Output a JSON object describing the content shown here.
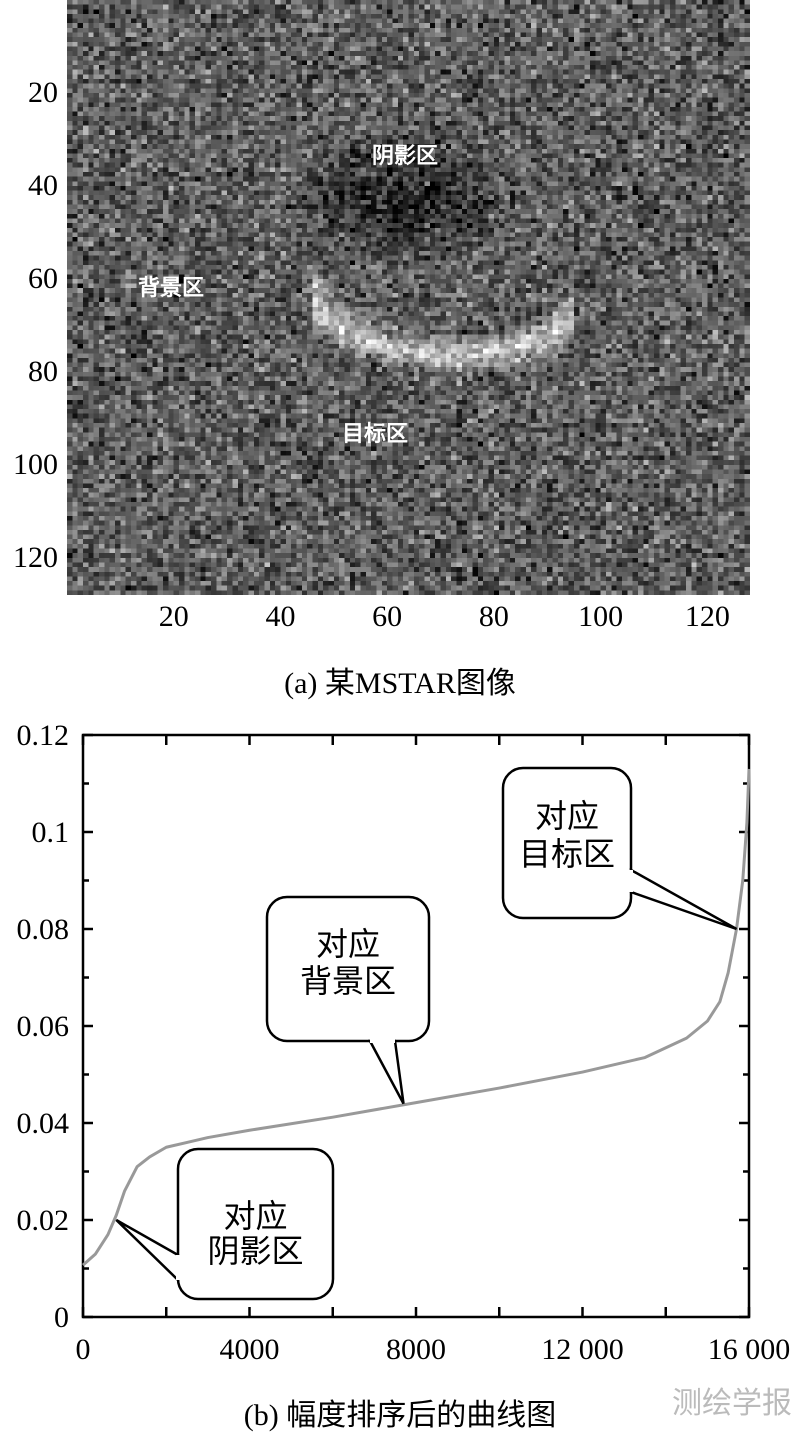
{
  "chart_data": [
    {
      "type": "heatmap",
      "title": "(a) 某MSTAR图像",
      "x_ticks": [
        "20",
        "40",
        "60",
        "80",
        "100",
        "120"
      ],
      "y_ticks": [
        "20",
        "40",
        "60",
        "80",
        "100",
        "120"
      ],
      "xlim": [
        1,
        128
      ],
      "ylim": [
        1,
        128
      ],
      "colormap": "gray",
      "annotations": [
        "阴影区",
        "背景区",
        "目标区"
      ]
    },
    {
      "type": "line",
      "title": "(b) 幅度排序后的曲线图",
      "x_ticks": [
        "0",
        "4000",
        "8000",
        "12 000",
        "16 000"
      ],
      "y_ticks": [
        "0",
        "0.02",
        "0.04",
        "0.06",
        "0.08",
        "0.1",
        "0.12"
      ],
      "xlim": [
        0,
        16000
      ],
      "ylim": [
        0,
        0.12
      ],
      "grid": false,
      "series": [
        {
          "color": "#999999",
          "x": [
            0,
            300,
            600,
            800,
            1000,
            1300,
            1600,
            2000,
            2500,
            3000,
            4000,
            6000,
            8000,
            10000,
            12000,
            13500,
            14500,
            15000,
            15300,
            15500,
            15700,
            15850,
            15950,
            16000
          ],
          "y": [
            0.0107,
            0.013,
            0.017,
            0.021,
            0.026,
            0.031,
            0.033,
            0.035,
            0.036,
            0.037,
            0.0385,
            0.0412,
            0.0442,
            0.0472,
            0.0505,
            0.0535,
            0.0575,
            0.061,
            0.065,
            0.071,
            0.08,
            0.09,
            0.102,
            0.113
          ]
        }
      ],
      "annotations": [
        {
          "line1": "对应",
          "line2": "阴影区"
        },
        {
          "line1": "对应",
          "line2": "背景区"
        },
        {
          "line1": "对应",
          "line2": "目标区"
        }
      ]
    }
  ],
  "watermark": "测绘学报"
}
